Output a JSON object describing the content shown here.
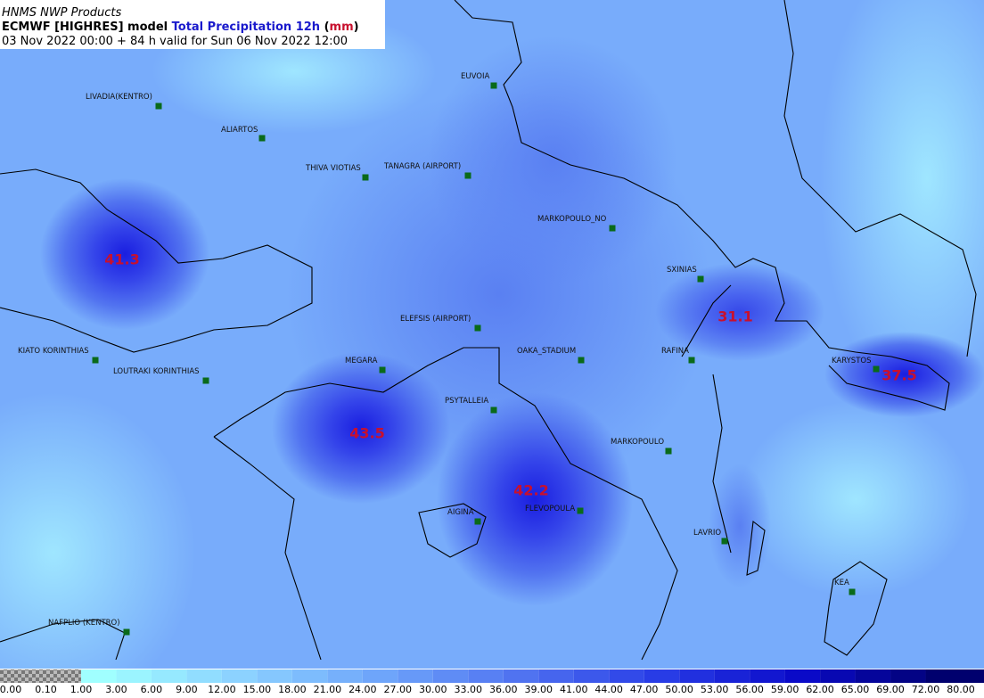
{
  "header": {
    "source": "HNMS NWP Products",
    "line2": [
      "ECMWF [HIGHRES] model",
      "Total Precipitation 12h",
      "(",
      "mm",
      ")"
    ],
    "valid": "03 Nov 2022 00:00 + 84 h valid for Sun 06 Nov 2022 12:00"
  },
  "stations": [
    "LIVADIA(KENTRO)",
    "ALIARTOS",
    "THIVA VIOTIAS",
    "TANAGRA (AIRPORT)",
    "EUVOIA",
    "MARKOPOULO_NO",
    "SXINIAS",
    "ELEFSIS (AIRPORT)",
    "OAKA_STADIUM",
    "RAFINA",
    "KARYSTOS",
    "MEGARA",
    "KIATO KORINTHIAS",
    "LOUTRAKI KORINTHIAS",
    "PSYTALLEIA",
    "MARKOPOULO",
    "AIGINA",
    "FLEVOPOULA",
    "LAVRIO",
    "KEA",
    "NAFPLIO (KENTRO)"
  ],
  "maxima": [
    41.3,
    43.5,
    42.2,
    31.1,
    37.5
  ],
  "colorbar": {
    "labels": [
      "0.00",
      "0.10",
      "1.00",
      "3.00",
      "6.00",
      "9.00",
      "12.00",
      "15.00",
      "18.00",
      "21.00",
      "24.00",
      "27.00",
      "30.00",
      "33.00",
      "36.00",
      "39.00",
      "41.00",
      "44.00",
      "47.00",
      "50.00",
      "53.00",
      "56.00",
      "59.00",
      "62.00",
      "65.00",
      "69.00",
      "72.00",
      "80.00"
    ]
  }
}
